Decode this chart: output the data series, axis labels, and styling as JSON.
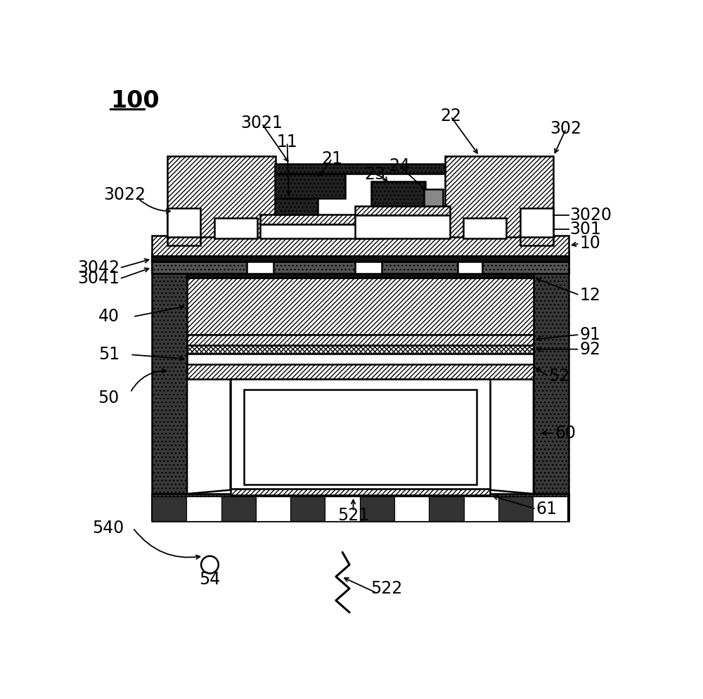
{
  "bg_color": "#ffffff",
  "black": "#000000",
  "white": "#ffffff",
  "dark_gray": "#1a1a1a",
  "mid_gray": "#555555",
  "label_fs": 17,
  "title_fs": 22
}
